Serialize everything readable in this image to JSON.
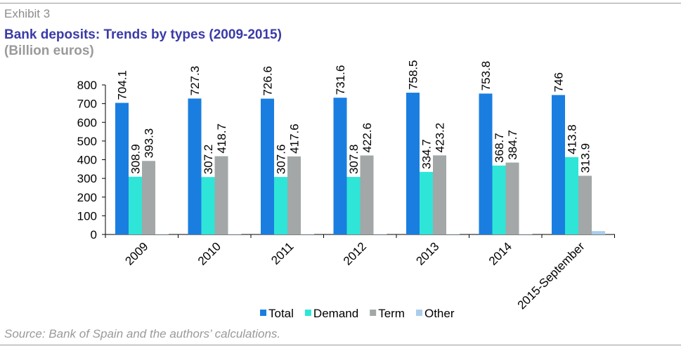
{
  "header": {
    "exhibit": "Exhibit 3",
    "title": "Bank deposits: Trends by types (2009-2015)",
    "subtitle": "(Billion euros)"
  },
  "footer": {
    "source": "Source: Bank of Spain and the authors’ calculations."
  },
  "chart_data": {
    "type": "bar",
    "categories": [
      "2009",
      "2010",
      "2011",
      "2012",
      "2013",
      "2014",
      "2015-September"
    ],
    "series": [
      {
        "name": "Total",
        "color": "#1a7ee0",
        "values": [
          704.1,
          727.3,
          726.6,
          731.6,
          758.5,
          753.8,
          746
        ],
        "labels": [
          "704.1",
          "727.3",
          "726.6",
          "731.6",
          "758.5",
          "753.8",
          "746"
        ]
      },
      {
        "name": "Demand",
        "color": "#2ee5d8",
        "values": [
          308.9,
          307.2,
          307.6,
          307.8,
          334.7,
          368.7,
          413.8
        ],
        "labels": [
          "308.9",
          "307.2",
          "307.6",
          "307.8",
          "334.7",
          "368.7",
          "413.8"
        ]
      },
      {
        "name": "Term",
        "color": "#a3a7a7",
        "values": [
          393.3,
          418.7,
          417.6,
          422.6,
          423.2,
          384.7,
          313.9
        ],
        "labels": [
          "393.3",
          "418.7",
          "417.6",
          "422.6",
          "423.2",
          "384.7",
          "313.9"
        ]
      },
      {
        "name": "Other",
        "color": "#a9cdea",
        "values": [
          2,
          2,
          2,
          2,
          2,
          2,
          18
        ]
      }
    ],
    "ylim": [
      0,
      800
    ],
    "yticks": [
      0,
      100,
      200,
      300,
      400,
      500,
      600,
      700,
      800
    ],
    "legend_position": "bottom-right",
    "grid": false
  }
}
